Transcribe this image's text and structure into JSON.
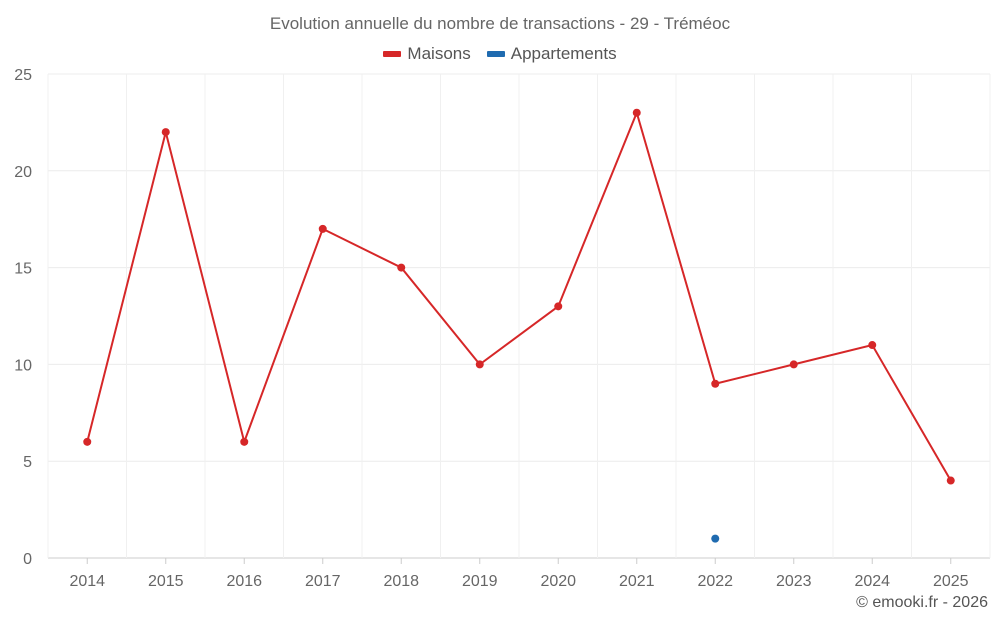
{
  "chart_data": {
    "type": "line",
    "title": "Evolution annuelle du nombre de transactions - 29 - Tréméoc",
    "categories": [
      "2014",
      "2015",
      "2016",
      "2017",
      "2018",
      "2019",
      "2020",
      "2021",
      "2022",
      "2023",
      "2024",
      "2025"
    ],
    "series": [
      {
        "name": "Maisons",
        "color": "#d62728",
        "values": [
          6,
          22,
          6,
          17,
          15,
          10,
          13,
          23,
          9,
          10,
          11,
          4
        ]
      },
      {
        "name": "Appartements",
        "color": "#1f6bb0",
        "values": [
          null,
          null,
          null,
          null,
          null,
          null,
          null,
          null,
          1,
          null,
          null,
          null
        ]
      }
    ],
    "yticks": [
      0,
      5,
      10,
      15,
      20,
      25
    ],
    "ylim": [
      0,
      25
    ],
    "grid": true,
    "legend_position": "top-center"
  },
  "credit": "© emooki.fr - 2026"
}
